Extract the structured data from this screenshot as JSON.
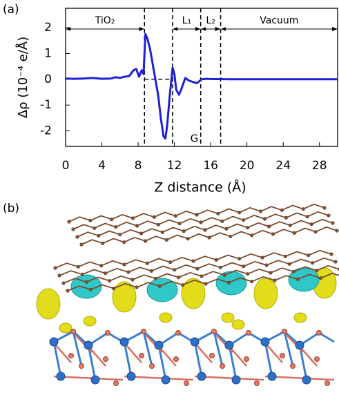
{
  "panels": [
    "(a)",
    "(b)"
  ],
  "chart_data": {
    "type": "line",
    "xlabel": "Z distance (Å)",
    "ylabel": "Δρ (10⁻⁴ e/Å)",
    "xlim": [
      0,
      30
    ],
    "ylim": [
      -2.6,
      2.75
    ],
    "xticks": [
      0,
      4,
      8,
      12,
      16,
      20,
      24,
      28
    ],
    "yticks": [
      -2,
      -1,
      0,
      1,
      2
    ],
    "x": [
      0,
      1,
      2,
      3,
      4,
      5,
      5.5,
      6,
      6.5,
      7,
      7.5,
      7.8,
      8.1,
      8.4,
      8.6,
      8.8,
      9,
      9.3,
      9.6,
      9.9,
      10.2,
      10.5,
      10.8,
      11,
      11.2,
      11.5,
      11.8,
      12,
      12.2,
      12.5,
      12.8,
      13.2,
      13.6,
      14,
      14.5,
      15,
      15.5,
      16,
      18,
      20,
      25,
      30
    ],
    "series": [
      {
        "color": "#1f1fd6",
        "values": [
          0.03,
          0.02,
          0.03,
          0.05,
          0.02,
          0.03,
          0.08,
          0.05,
          0.1,
          0.12,
          0.35,
          0.4,
          0.1,
          0.35,
          0.2,
          1.75,
          1.6,
          1.2,
          0.6,
          0.0,
          -0.6,
          -1.5,
          -2.2,
          -2.3,
          -1.8,
          -0.6,
          0.45,
          0.2,
          -0.4,
          -0.6,
          -0.35,
          0.05,
          -0.05,
          -0.1,
          -0.15,
          0.0,
          0.02,
          0.01,
          0.0,
          0.0,
          0.0,
          0.0
        ]
      }
    ],
    "vlines": [
      8.7,
      11.8,
      14.9,
      17.1
    ],
    "regions": [
      {
        "label": "TiO₂",
        "from": 0,
        "to": 8.7
      },
      {
        "label": "L₁",
        "from": 11.8,
        "to": 14.9
      },
      {
        "label": "L₂",
        "from": 14.9,
        "to": 17.1
      },
      {
        "label": "Vacuum",
        "from": 17.1,
        "to": 30
      }
    ],
    "annotations": [
      {
        "text": "G",
        "x": 14.2,
        "y": -2.3
      }
    ]
  }
}
